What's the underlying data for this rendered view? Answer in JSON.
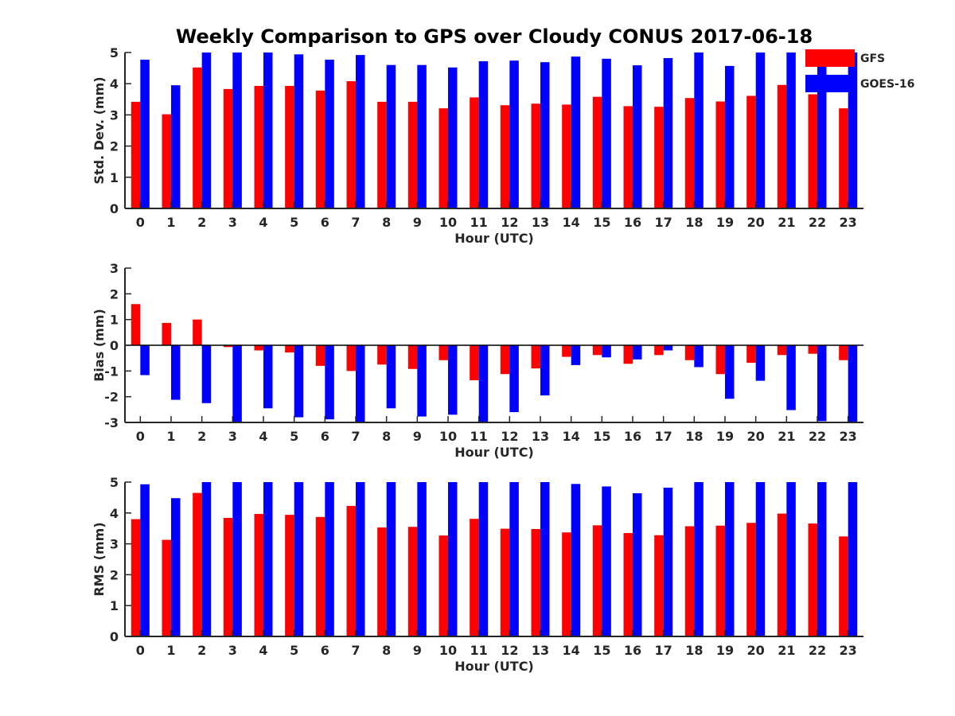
{
  "chart_data": {
    "type": "bar",
    "title": "Weekly Comparison to GPS over Cloudy CONUS 2017-06-18",
    "categories": [
      "0",
      "1",
      "2",
      "3",
      "4",
      "5",
      "6",
      "7",
      "8",
      "9",
      "10",
      "11",
      "12",
      "13",
      "14",
      "15",
      "16",
      "17",
      "18",
      "19",
      "20",
      "21",
      "22",
      "23"
    ],
    "legend": {
      "placement": "top-right",
      "entries": [
        {
          "name": "GFS",
          "color": "#ff0000"
        },
        {
          "name": "GOES-16",
          "color": "#0000ff"
        }
      ]
    },
    "panels": [
      {
        "ylabel": "Std. Dev. (mm)",
        "xlabel": "Hour (UTC)",
        "ylim": [
          0,
          5
        ],
        "yticks": [
          0,
          1,
          2,
          3,
          4,
          5
        ],
        "series": [
          {
            "name": "GFS",
            "color": "#ff0000",
            "values": [
              3.42,
              3.02,
              4.52,
              3.83,
              3.93,
              3.93,
              3.78,
              4.08,
              3.42,
              3.42,
              3.21,
              3.56,
              3.31,
              3.36,
              3.33,
              3.58,
              3.28,
              3.26,
              3.54,
              3.43,
              3.61,
              3.96,
              3.66,
              3.21
            ]
          },
          {
            "name": "GOES-16",
            "color": "#0000ff",
            "values": [
              4.77,
              3.95,
              5.0,
              5.0,
              5.0,
              4.94,
              4.77,
              4.92,
              4.6,
              4.6,
              4.52,
              4.72,
              4.74,
              4.69,
              4.87,
              4.8,
              4.59,
              4.82,
              5.0,
              4.57,
              5.0,
              5.0,
              5.0,
              5.0
            ]
          }
        ]
      },
      {
        "ylabel": "Bias (mm)",
        "xlabel": "Hour (UTC)",
        "ylim": [
          -3,
          3
        ],
        "yticks": [
          -3,
          -2,
          -1,
          0,
          1,
          2,
          3
        ],
        "series": [
          {
            "name": "GFS",
            "color": "#ff0000",
            "values": [
              1.6,
              0.87,
              1.0,
              -0.07,
              -0.2,
              -0.28,
              -0.8,
              -1.0,
              -0.75,
              -0.92,
              -0.58,
              -1.36,
              -1.12,
              -0.9,
              -0.45,
              -0.38,
              -0.72,
              -0.38,
              -0.58,
              -1.12,
              -0.68,
              -0.38,
              -0.33,
              -0.58
            ]
          },
          {
            "name": "GOES-16",
            "color": "#0000ff",
            "values": [
              -1.16,
              -2.12,
              -2.25,
              -3.0,
              -2.45,
              -2.8,
              -2.88,
              -3.0,
              -2.45,
              -2.77,
              -2.7,
              -3.0,
              -2.6,
              -1.95,
              -0.77,
              -0.47,
              -0.55,
              -0.2,
              -0.85,
              -2.08,
              -1.38,
              -2.52,
              -2.95,
              -3.0
            ]
          }
        ]
      },
      {
        "ylabel": "RMS (mm)",
        "xlabel": "Hour (UTC)",
        "ylim": [
          0,
          5
        ],
        "yticks": [
          0,
          1,
          2,
          3,
          4,
          5
        ],
        "series": [
          {
            "name": "GFS",
            "color": "#ff0000",
            "values": [
              3.8,
              3.13,
              4.65,
              3.84,
              3.97,
              3.94,
              3.87,
              4.23,
              3.53,
              3.55,
              3.27,
              3.81,
              3.49,
              3.48,
              3.37,
              3.6,
              3.35,
              3.28,
              3.57,
              3.59,
              3.68,
              3.98,
              3.66,
              3.24
            ]
          },
          {
            "name": "GOES-16",
            "color": "#0000ff",
            "values": [
              4.93,
              4.48,
              5.0,
              5.0,
              5.0,
              5.0,
              5.0,
              5.0,
              5.0,
              5.0,
              5.0,
              5.0,
              5.0,
              5.0,
              4.94,
              4.86,
              4.64,
              4.82,
              5.0,
              5.0,
              5.0,
              5.0,
              5.0,
              5.0
            ]
          }
        ]
      }
    ]
  }
}
